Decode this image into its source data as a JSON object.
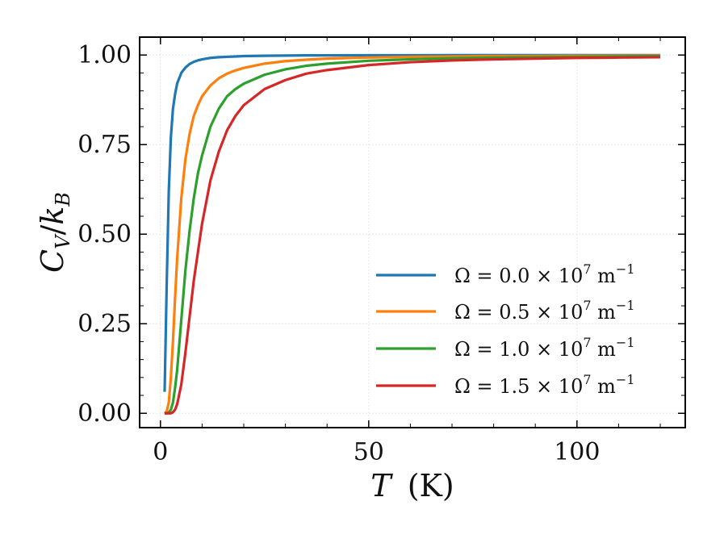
{
  "chart_data": {
    "type": "line",
    "title": "",
    "xlabel": "T (K)",
    "ylabel": "C_V / k_B",
    "xlim": [
      -5,
      126
    ],
    "ylim": [
      -0.04,
      1.05
    ],
    "xticks": [
      0,
      50,
      100
    ],
    "xtick_labels": [
      "0",
      "50",
      "100"
    ],
    "yticks": [
      0.0,
      0.25,
      0.5,
      0.75,
      1.0
    ],
    "ytick_labels": [
      "0.00",
      "0.25",
      "0.50",
      "0.75",
      "1.00"
    ],
    "grid": true,
    "legend_position": "center-right",
    "x": [
      1.0,
      1.5,
      2.0,
      2.5,
      3.0,
      3.5,
      4.0,
      5.0,
      6.0,
      7.0,
      8.0,
      9.0,
      10.0,
      12.0,
      14.0,
      16.0,
      18.0,
      20.0,
      25.0,
      30.0,
      35.0,
      40.0,
      50.0,
      60.0,
      70.0,
      80.0,
      90.0,
      100.0,
      110.0,
      120.0
    ],
    "series": [
      {
        "name": "Ω = 0.0 × 10^7 m^-1",
        "color": "#1f77b4",
        "values": [
          0.06,
          0.36,
          0.62,
          0.77,
          0.85,
          0.89,
          0.92,
          0.95,
          0.965,
          0.975,
          0.981,
          0.985,
          0.988,
          0.992,
          0.994,
          0.995,
          0.996,
          0.997,
          0.998,
          0.9985,
          0.999,
          0.999,
          0.9993,
          0.9995,
          0.9996,
          0.9997,
          0.9997,
          0.9998,
          0.9998,
          0.9998
        ]
      },
      {
        "name": "Ω = 0.5 × 10^7 m^-1",
        "color": "#ff7f0e",
        "values": [
          0.0,
          0.005,
          0.03,
          0.1,
          0.2,
          0.32,
          0.43,
          0.6,
          0.71,
          0.78,
          0.83,
          0.86,
          0.885,
          0.915,
          0.935,
          0.948,
          0.957,
          0.964,
          0.976,
          0.983,
          0.987,
          0.99,
          0.993,
          0.995,
          0.996,
          0.997,
          0.9975,
          0.998,
          0.9983,
          0.9985
        ]
      },
      {
        "name": "Ω = 1.0 × 10^7 m^-1",
        "color": "#2ca02c",
        "values": [
          0.0,
          0.0,
          0.002,
          0.01,
          0.03,
          0.07,
          0.12,
          0.26,
          0.4,
          0.51,
          0.6,
          0.67,
          0.72,
          0.8,
          0.85,
          0.885,
          0.905,
          0.92,
          0.945,
          0.96,
          0.97,
          0.976,
          0.984,
          0.988,
          0.991,
          0.993,
          0.994,
          0.995,
          0.996,
          0.997
        ]
      },
      {
        "name": "Ω = 1.5 × 10^7 m^-1",
        "color": "#d62728",
        "values": [
          0.0,
          0.0,
          0.0,
          0.0,
          0.003,
          0.01,
          0.025,
          0.08,
          0.17,
          0.27,
          0.37,
          0.45,
          0.53,
          0.65,
          0.73,
          0.79,
          0.83,
          0.86,
          0.905,
          0.93,
          0.948,
          0.958,
          0.972,
          0.98,
          0.985,
          0.988,
          0.99,
          0.992,
          0.993,
          0.994
        ]
      }
    ]
  },
  "legend": {
    "entries": [
      {
        "prefix": "Ω = ",
        "coef": "0.0",
        "unit": "m"
      },
      {
        "prefix": "Ω = ",
        "coef": "0.5",
        "unit": "m"
      },
      {
        "prefix": "Ω = ",
        "coef": "1.0",
        "unit": "m"
      },
      {
        "prefix": "Ω = ",
        "coef": "1.5",
        "unit": "m"
      }
    ],
    "times": "×",
    "base": "10",
    "exponent": "7",
    "unit_exponent": "−1"
  },
  "axes_text": {
    "x_symbol": "T",
    "x_unit": "(K)",
    "y_symbol_main": "C",
    "y_symbol_sub": "V",
    "y_slash": "/",
    "y_symbol2_main": "k",
    "y_symbol2_sub": "B"
  }
}
